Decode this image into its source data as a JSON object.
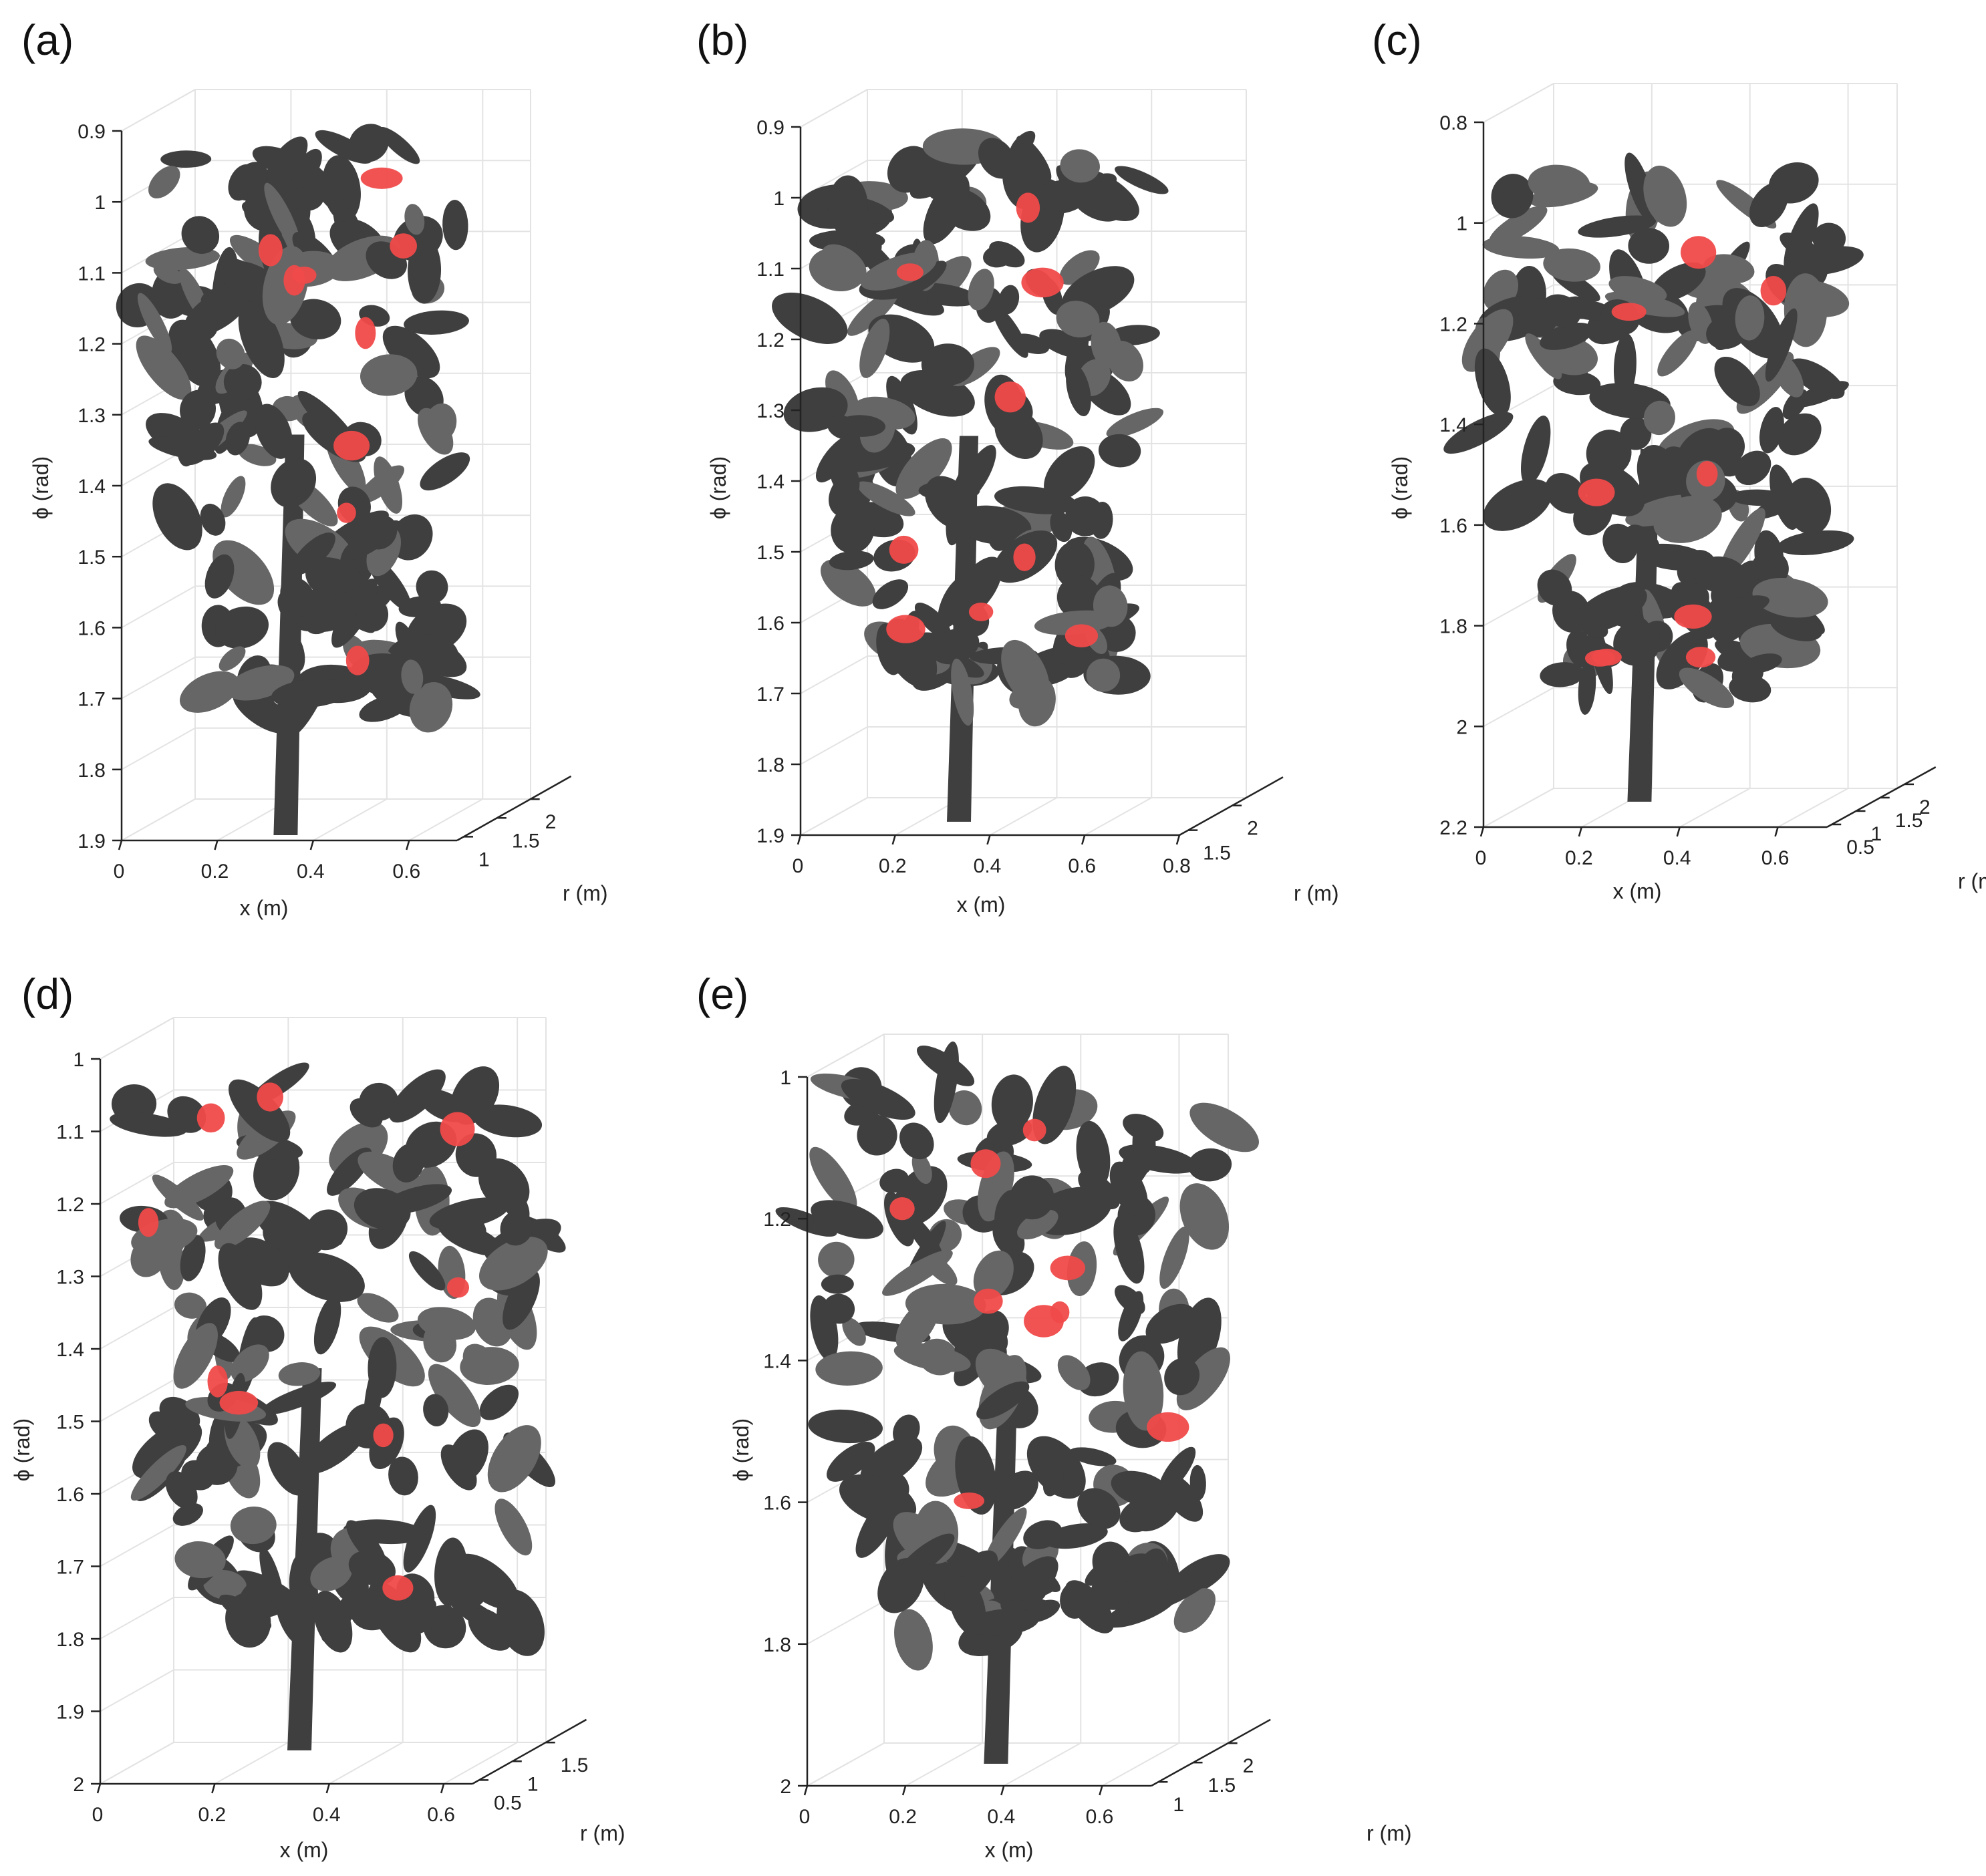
{
  "chart_data": [
    {
      "type": "scatter",
      "panel_label": "(a)",
      "xlabel": "x (m)",
      "ylabel": "ϕ (rad)",
      "zlabel": "r (m)",
      "x_ticks": [
        "0",
        "0.2",
        "0.4",
        "0.6"
      ],
      "phi_ticks": [
        "0.9",
        "1",
        "1.1",
        "1.2",
        "1.3",
        "1.4",
        "1.5",
        "1.6",
        "1.7",
        "1.8",
        "1.9"
      ],
      "r_ticks": [
        "1",
        "1.5",
        "2"
      ],
      "xlim": [
        0,
        0.7
      ],
      "phi_lim": [
        0.9,
        1.9
      ],
      "rlim": [
        1,
        2.3
      ],
      "colors": {
        "plant": "#3f3f3f",
        "plant_light": "#666666",
        "fruit": "#f04a4a"
      }
    },
    {
      "type": "scatter",
      "panel_label": "(b)",
      "xlabel": "x (m)",
      "ylabel": "ϕ (rad)",
      "zlabel": "r (m)",
      "x_ticks": [
        "0",
        "0.2",
        "0.4",
        "0.6",
        "0.8"
      ],
      "phi_ticks": [
        "0.9",
        "1",
        "1.1",
        "1.2",
        "1.3",
        "1.4",
        "1.5",
        "1.6",
        "1.7",
        "1.8",
        "1.9"
      ],
      "r_ticks": [
        "1.5",
        "2"
      ],
      "xlim": [
        0,
        0.8
      ],
      "phi_lim": [
        0.9,
        1.9
      ],
      "rlim": [
        1.3,
        2.3
      ],
      "colors": {
        "plant": "#3f3f3f",
        "plant_light": "#666666",
        "fruit": "#f04a4a"
      }
    },
    {
      "type": "scatter",
      "panel_label": "(c)",
      "xlabel": "x (m)",
      "ylabel": "ϕ (rad)",
      "zlabel": "r (m)",
      "x_ticks": [
        "0",
        "0.2",
        "0.4",
        "0.6"
      ],
      "phi_ticks": [
        "0.8",
        "1",
        "1.2",
        "1.4",
        "1.6",
        "1.8",
        "2",
        "2.2"
      ],
      "r_ticks": [
        "0.5",
        "1",
        "1.5",
        "2"
      ],
      "xlim": [
        0,
        0.7
      ],
      "phi_lim": [
        0.8,
        2.2
      ],
      "rlim": [
        0.5,
        2.2
      ],
      "colors": {
        "plant": "#3f3f3f",
        "plant_light": "#666666",
        "fruit": "#f04a4a"
      }
    },
    {
      "type": "scatter",
      "panel_label": "(d)",
      "xlabel": "x (m)",
      "ylabel": "ϕ (rad)",
      "zlabel": "r (m)",
      "x_ticks": [
        "0",
        "0.2",
        "0.4",
        "0.6"
      ],
      "phi_ticks": [
        "1",
        "1.1",
        "1.2",
        "1.3",
        "1.4",
        "1.5",
        "1.6",
        "1.7",
        "1.8",
        "1.9",
        "2"
      ],
      "r_ticks": [
        "0.5",
        "1",
        "1.5"
      ],
      "xlim": [
        0,
        0.65
      ],
      "phi_lim": [
        0.9,
        2.05
      ],
      "rlim": [
        0.5,
        1.8
      ],
      "colors": {
        "plant": "#3f3f3f",
        "plant_light": "#666666",
        "fruit": "#f04a4a"
      }
    },
    {
      "type": "scatter",
      "panel_label": "(e)",
      "xlabel": "x (m)",
      "ylabel": "ϕ (rad)",
      "zlabel": "r (m)",
      "x_ticks": [
        "0",
        "0.2",
        "0.4",
        "0.6"
      ],
      "phi_ticks": [
        "1",
        "1.2",
        "1.4",
        "1.6",
        "1.8",
        "2"
      ],
      "r_ticks": [
        "1",
        "1.5",
        "2"
      ],
      "xlim": [
        0,
        0.7
      ],
      "phi_lim": [
        0.9,
        2.1
      ],
      "rlim": [
        1,
        2.3
      ],
      "colors": {
        "plant": "#3f3f3f",
        "plant_light": "#666666",
        "fruit": "#f04a4a"
      }
    }
  ]
}
